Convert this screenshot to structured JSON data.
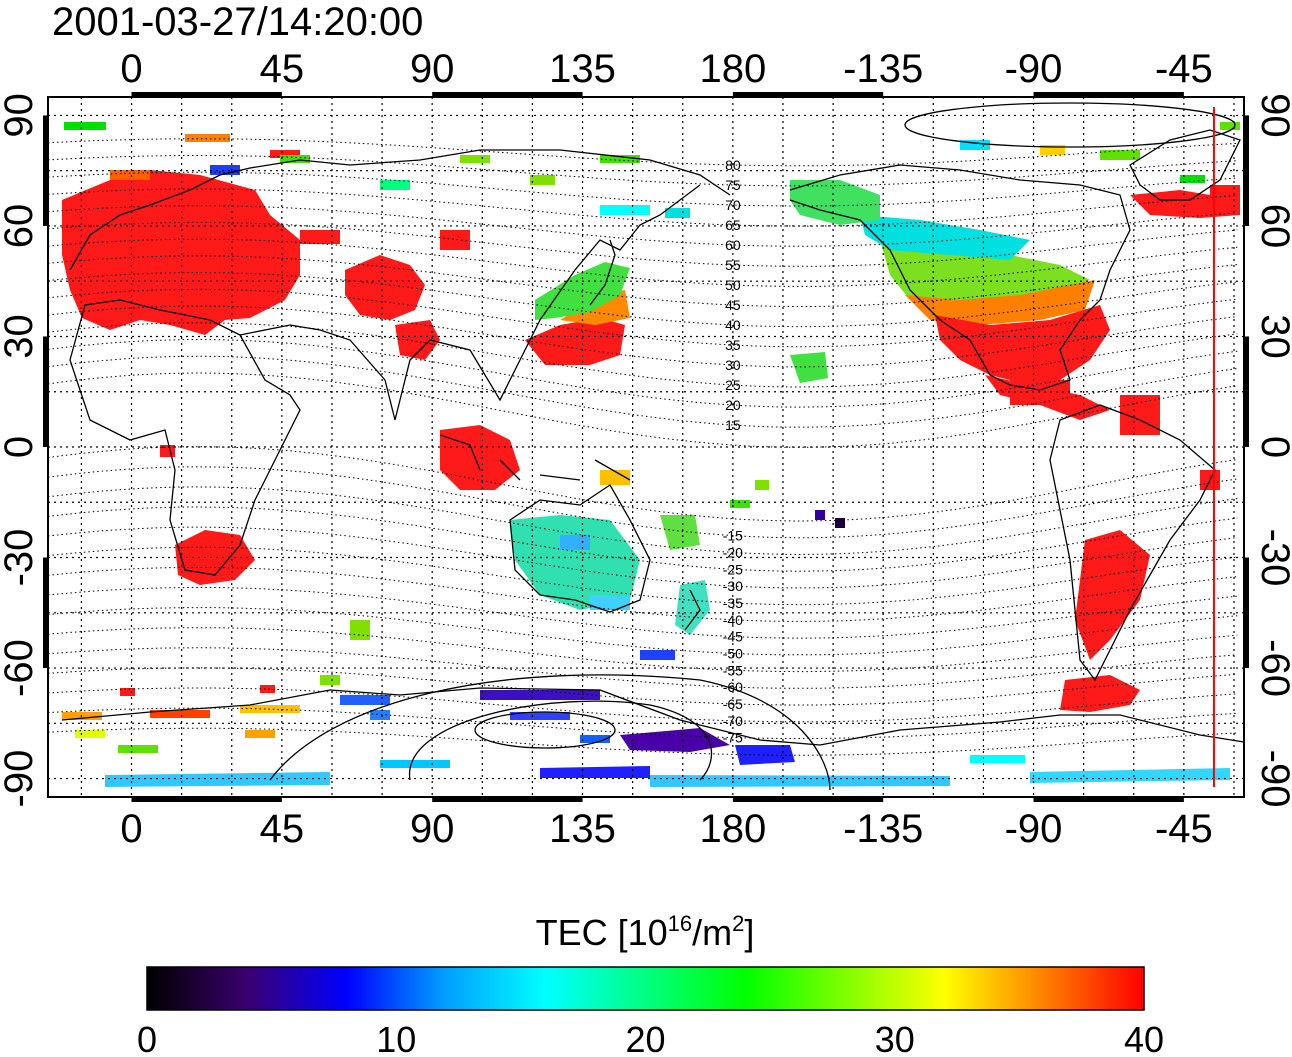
{
  "title": "2001-03-27/14:20:00",
  "map": {
    "lon_ticks": [
      "0",
      "45",
      "90",
      "135",
      "180",
      "-135",
      "-90",
      "-45"
    ],
    "lat_ticks": [
      "90",
      "60",
      "30",
      "0",
      "-30",
      "-60",
      "-90"
    ],
    "lon_values": [
      0,
      45,
      90,
      135,
      180,
      225,
      270,
      315
    ],
    "lat_values": [
      90,
      60,
      30,
      0,
      -30,
      -60,
      -90
    ],
    "lon_range": [
      -25,
      333
    ],
    "lat_range": [
      -95,
      95
    ],
    "grid": "dotted",
    "terminator_line": {
      "color": "#ff0000",
      "lon": 324
    },
    "contour_labels_north": [
      "80",
      "75",
      "70",
      "65",
      "60",
      "55",
      "50",
      "45",
      "40",
      "35",
      "30",
      "25",
      "20",
      "15"
    ],
    "contour_labels_south": [
      "-15",
      "-20",
      "-25",
      "-30",
      "-35",
      "-40",
      "-45",
      "-50",
      "-55",
      "-60",
      "-65",
      "-70",
      "-75"
    ]
  },
  "colorbar": {
    "label_main": "TEC  [10",
    "label_sup1": "16",
    "label_mid": "/m",
    "label_sup2": "2",
    "label_end": "]",
    "ticks": [
      "0",
      "10",
      "20",
      "30",
      "40"
    ],
    "range": [
      0,
      40
    ],
    "colors": [
      "#000000",
      "#3a006e",
      "#0000ff",
      "#00a0ff",
      "#00ffff",
      "#00ff80",
      "#00ff00",
      "#80ff00",
      "#ffff00",
      "#ff8000",
      "#ff0000"
    ]
  }
}
